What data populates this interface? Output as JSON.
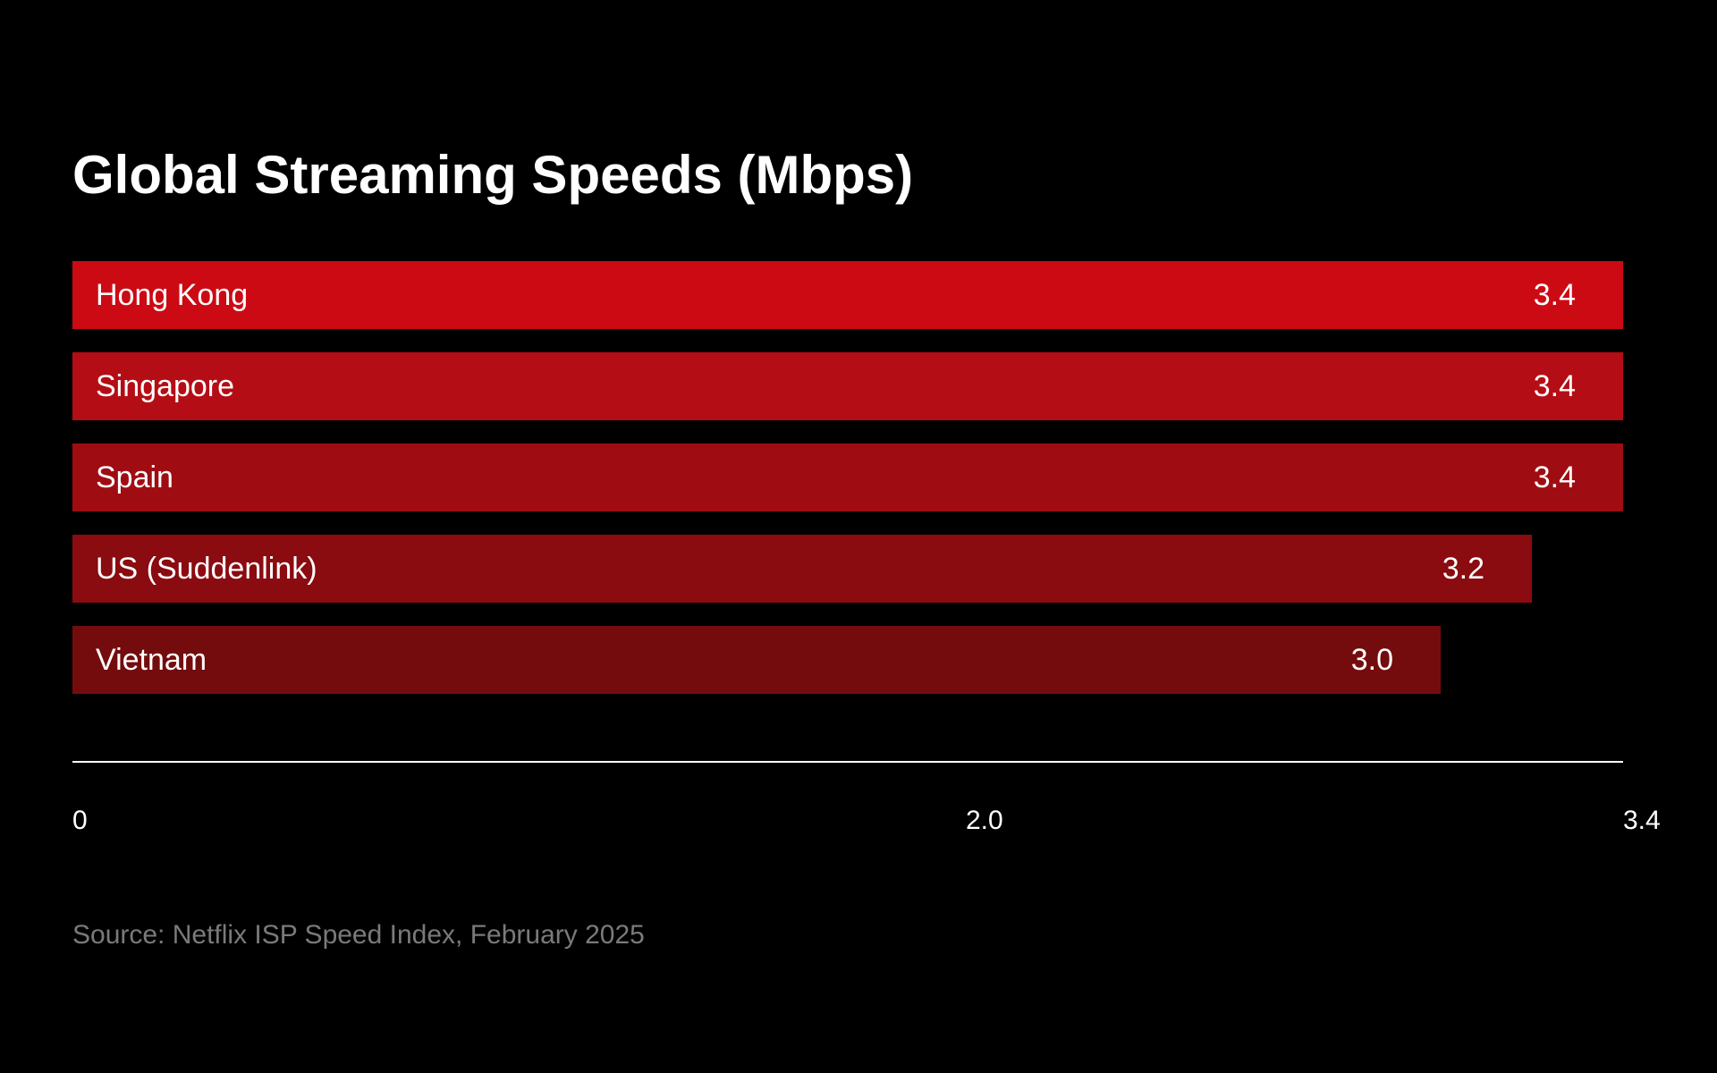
{
  "chart_data": {
    "type": "bar",
    "orientation": "horizontal",
    "title": "Global Streaming Speeds (Mbps)",
    "categories": [
      "Hong Kong",
      "Singapore",
      "Spain",
      "US (Suddenlink)",
      "Vietnam"
    ],
    "values": [
      3.4,
      3.4,
      3.4,
      3.2,
      3.0
    ],
    "value_labels": [
      "3.4",
      "3.4",
      "3.4",
      "3.2",
      "3.0"
    ],
    "bar_colors": [
      "#cc0a14",
      "#b50d15",
      "#9f0d13",
      "#8a0b10",
      "#740c0e"
    ],
    "xlim": [
      0,
      3.4
    ],
    "x_ticks": [
      {
        "value": 0,
        "label": "0"
      },
      {
        "value": 2.0,
        "label": "2.0"
      },
      {
        "value": 3.4,
        "label": "3.4"
      }
    ],
    "xlabel": "",
    "ylabel": "",
    "grid": false,
    "legend": "none",
    "source": "Source: Netflix ISP Speed Index, February 2025"
  },
  "colors": {
    "background": "#000000",
    "text": "#ffffff",
    "axis": "#ffffff",
    "source_text": "#7a7a7a"
  }
}
